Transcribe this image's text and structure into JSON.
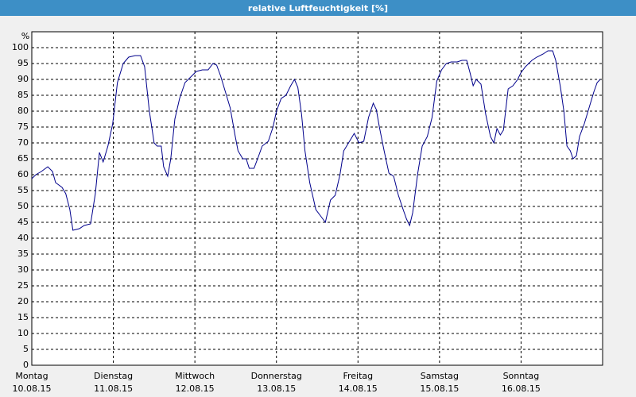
{
  "chart_data": {
    "type": "line",
    "title": "relative Luftfeuchtigkeit [%]",
    "y_label": "%",
    "xlim": [
      0,
      168
    ],
    "xticks": [
      {
        "value": 0,
        "label": "Montag",
        "date": "10.08.15"
      },
      {
        "value": 24,
        "label": "Dienstag",
        "date": "11.08.15"
      },
      {
        "value": 48,
        "label": "Mittwoch",
        "date": "12.08.15"
      },
      {
        "value": 72,
        "label": "Donnerstag",
        "date": "13.08.15"
      },
      {
        "value": 96,
        "label": "Freitag",
        "date": "14.08.15"
      },
      {
        "value": 120,
        "label": "Samstag",
        "date": "15.08.15"
      },
      {
        "value": 144,
        "label": "Sonntag",
        "date": "16.08.15"
      }
    ],
    "ylim": [
      0,
      105
    ],
    "yticks": [
      0,
      5,
      10,
      15,
      20,
      25,
      30,
      35,
      40,
      45,
      50,
      55,
      60,
      65,
      70,
      75,
      80,
      85,
      90,
      95,
      100
    ],
    "grid": true,
    "x": [
      0,
      1.2,
      2.8,
      4.7,
      6.1,
      7.0,
      8.9,
      10.0,
      11.2,
      12.1,
      14.0,
      15.4,
      17.3,
      18.7,
      19.9,
      21.0,
      22.4,
      23.8,
      25.2,
      26.9,
      28.5,
      30.4,
      32.0,
      33.2,
      34.6,
      36.0,
      36.9,
      38.1,
      38.8,
      40.0,
      40.9,
      42.1,
      43.5,
      45.1,
      47.0,
      48.4,
      50.2,
      51.9,
      53.3,
      54.4,
      55.6,
      57.0,
      58.4,
      59.8,
      60.7,
      62.1,
      63.1,
      64.0,
      65.4,
      66.8,
      67.8,
      69.6,
      71.0,
      72.0,
      73.4,
      74.8,
      76.2,
      77.3,
      78.3,
      79.4,
      80.4,
      81.8,
      83.6,
      85.0,
      86.4,
      87.9,
      89.3,
      90.7,
      91.8,
      93.5,
      94.9,
      96.3,
      97.7,
      99.1,
      100.5,
      101.4,
      102.3,
      103.7,
      105.1,
      106.5,
      107.9,
      109.3,
      110.3,
      111.2,
      112.1,
      113.6,
      114.9,
      116.4,
      117.8,
      119.2,
      120.6,
      122.0,
      123.4,
      125.2,
      126.6,
      128.0,
      129.0,
      129.9,
      130.8,
      132.2,
      133.6,
      135.0,
      136.0,
      136.9,
      137.9,
      138.8,
      140.2,
      141.6,
      143.0,
      143.9,
      145.3,
      147.2,
      148.6,
      150.5,
      151.9,
      153.3,
      154.2,
      155.6,
      156.6,
      157.5,
      158.5,
      159.3,
      160.3,
      161.2,
      162.6,
      164.0,
      165.4,
      166.4,
      167.3
    ],
    "series": [
      {
        "name": "relative Luftfeuchtigkeit",
        "color": "#00008b",
        "values": [
          58.75,
          60,
          61,
          62.5,
          61,
          57.5,
          56,
          54,
          49,
          42.5,
          43,
          44,
          44.5,
          54,
          67,
          64,
          69,
          76,
          89,
          95,
          97,
          97.5,
          97.5,
          94,
          80,
          70,
          69,
          69,
          62.5,
          59.5,
          65,
          77.5,
          84,
          89,
          91,
          92.5,
          93,
          93,
          95,
          94.5,
          91,
          86,
          81,
          72.5,
          67.5,
          65,
          65,
          62,
          62,
          66,
          69,
          70.5,
          75,
          80,
          84,
          85,
          88,
          90,
          87.5,
          79,
          67.5,
          57.5,
          49,
          47,
          45,
          52,
          53.5,
          60,
          67.5,
          70.5,
          73,
          70,
          70.5,
          78,
          82.5,
          80.5,
          75,
          67.5,
          60.5,
          59.5,
          53.5,
          49,
          46,
          44,
          48,
          60.5,
          69,
          72,
          78,
          89.5,
          93,
          95,
          95.5,
          95.5,
          96,
          96,
          92,
          88,
          90,
          88.5,
          79,
          72,
          70,
          74.5,
          72.5,
          74,
          87,
          88,
          90,
          92,
          94,
          96,
          97,
          98,
          99,
          99,
          96,
          87.5,
          80,
          69,
          67.5,
          65,
          66,
          72,
          76,
          81,
          86,
          89,
          90
        ]
      }
    ]
  }
}
